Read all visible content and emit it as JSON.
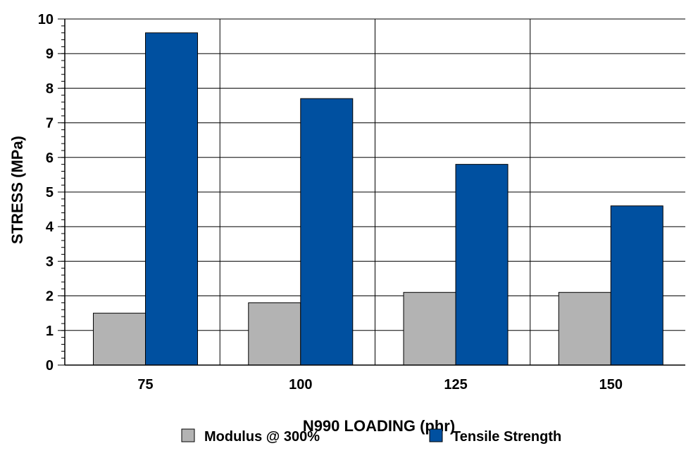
{
  "chart_data": {
    "type": "bar",
    "title": "",
    "xlabel": "N990 LOADING (phr)",
    "ylabel": "STRESS (MPa)",
    "categories": [
      "75",
      "100",
      "125",
      "150"
    ],
    "series": [
      {
        "name": "Modulus @ 300%",
        "values": [
          1.5,
          1.8,
          2.1,
          2.1
        ],
        "color": "#b3b3b3"
      },
      {
        "name": "Tensile Strength",
        "values": [
          9.6,
          7.7,
          5.8,
          4.6
        ],
        "color": "#0050a0"
      }
    ],
    "ylim": [
      0,
      10
    ],
    "yticks": [
      "0",
      "1",
      "2",
      "3",
      "4",
      "5",
      "6",
      "7",
      "8",
      "9",
      "10"
    ],
    "grid": true,
    "legend_position": "bottom"
  }
}
